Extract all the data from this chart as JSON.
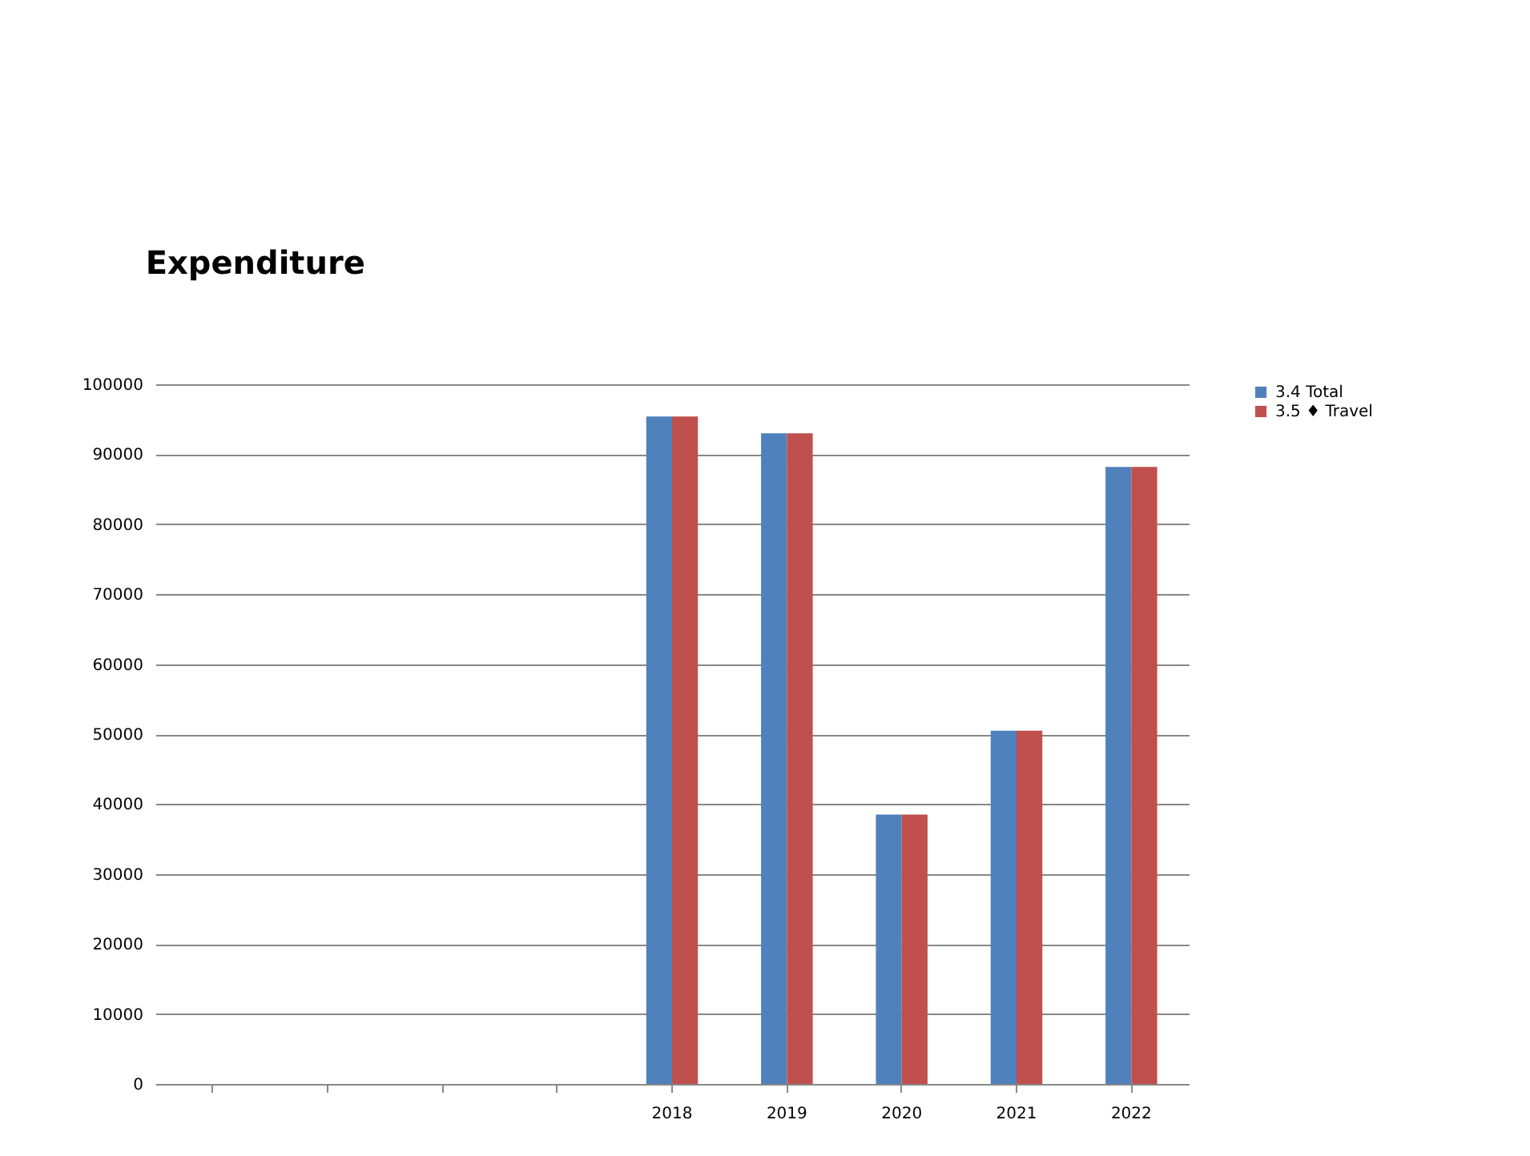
{
  "chart_data": {
    "type": "bar",
    "title": "Expenditure",
    "categories": [
      null,
      null,
      null,
      null,
      "2018",
      "2019",
      "2020",
      "2021",
      "2022"
    ],
    "series": [
      {
        "name": "3.4 Total",
        "color": "#4f81bd",
        "values": [
          null,
          null,
          null,
          null,
          95400,
          93000,
          38500,
          50500,
          88200
        ]
      },
      {
        "name": "3.5 ♦ Travel",
        "color": "#c0504d",
        "values": [
          null,
          null,
          null,
          null,
          95400,
          93000,
          38500,
          50500,
          88200
        ]
      }
    ],
    "ylim": [
      0,
      100000
    ],
    "yticks": [
      0,
      10000,
      20000,
      30000,
      40000,
      50000,
      60000,
      70000,
      80000,
      90000,
      100000
    ],
    "grid": "y",
    "legend": "right"
  }
}
